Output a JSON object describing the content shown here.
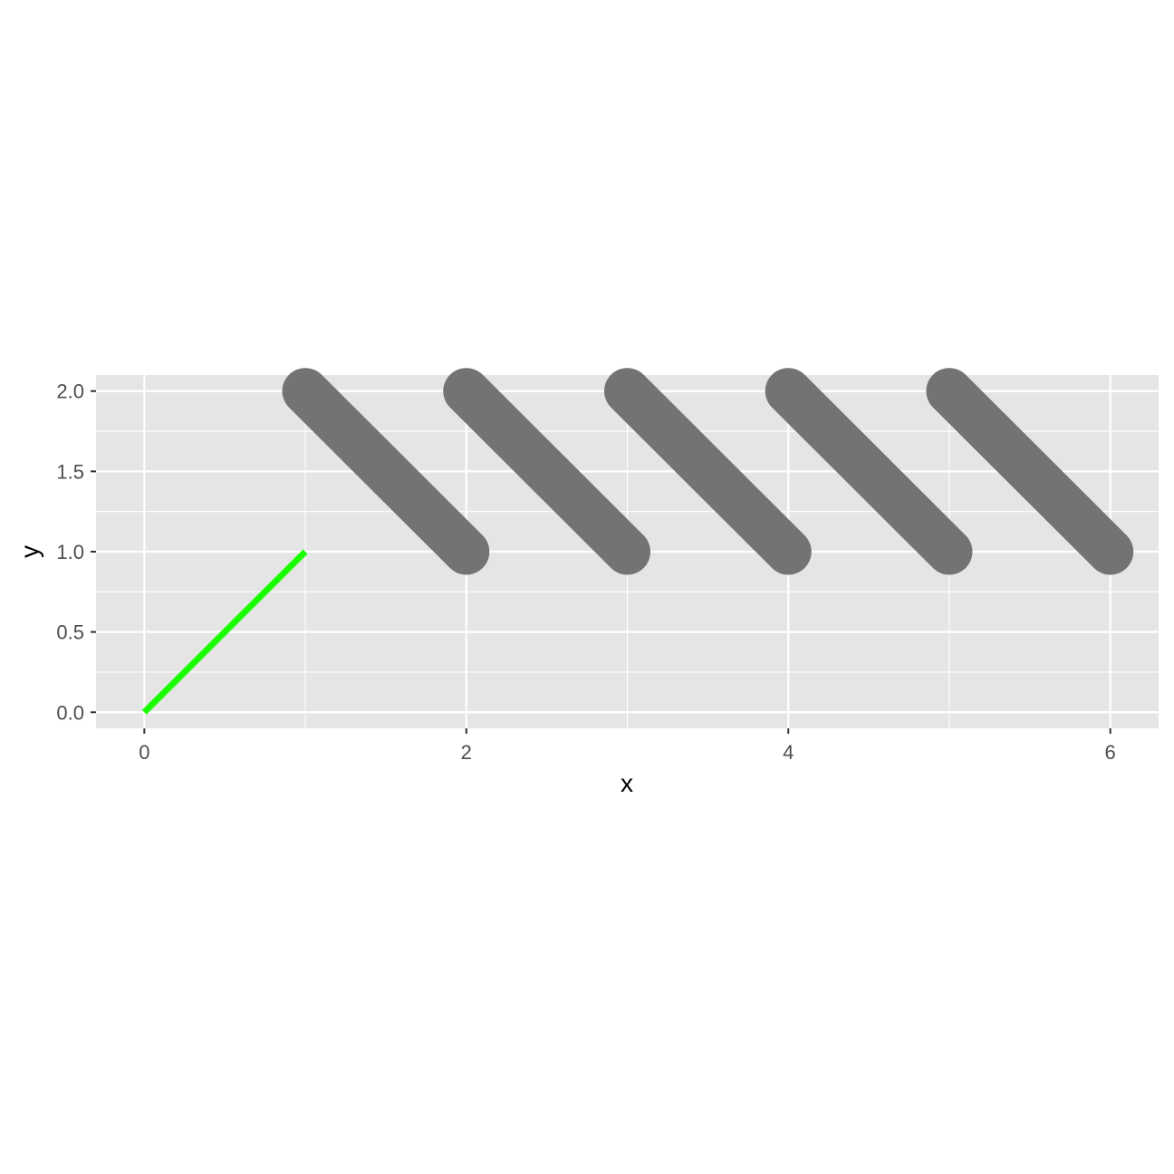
{
  "chart_data": {
    "type": "line",
    "xlabel": "x",
    "ylabel": "y",
    "xlim": [
      -0.3,
      6.3
    ],
    "ylim": [
      -0.1,
      2.1
    ],
    "x_ticks": [
      0,
      2,
      4,
      6
    ],
    "x_tick_labels": [
      "0",
      "2",
      "4",
      "6"
    ],
    "x_minor_grid": [
      1,
      3,
      5
    ],
    "y_ticks": [
      0,
      0.5,
      1,
      1.5,
      2
    ],
    "y_tick_labels": [
      "0.0",
      "0.5",
      "1.0",
      "1.5",
      "2.0"
    ],
    "y_minor_grid": [
      0.25,
      0.75,
      1.25,
      1.75
    ],
    "grid": true,
    "panel_background": "#e5e5e5",
    "segments": [
      {
        "x": [
          0,
          1
        ],
        "y": [
          0,
          1
        ],
        "color": "#1aff00",
        "weight": "thin"
      },
      {
        "x": [
          1,
          2
        ],
        "y": [
          2,
          1
        ],
        "color": "#737373",
        "weight": "thick"
      },
      {
        "x": [
          2,
          3
        ],
        "y": [
          2,
          1
        ],
        "color": "#737373",
        "weight": "thick"
      },
      {
        "x": [
          3,
          4
        ],
        "y": [
          2,
          1
        ],
        "color": "#737373",
        "weight": "thick"
      },
      {
        "x": [
          4,
          5
        ],
        "y": [
          2,
          1
        ],
        "color": "#737373",
        "weight": "thick"
      },
      {
        "x": [
          5,
          6
        ],
        "y": [
          2,
          1
        ],
        "color": "#737373",
        "weight": "thick"
      }
    ]
  }
}
